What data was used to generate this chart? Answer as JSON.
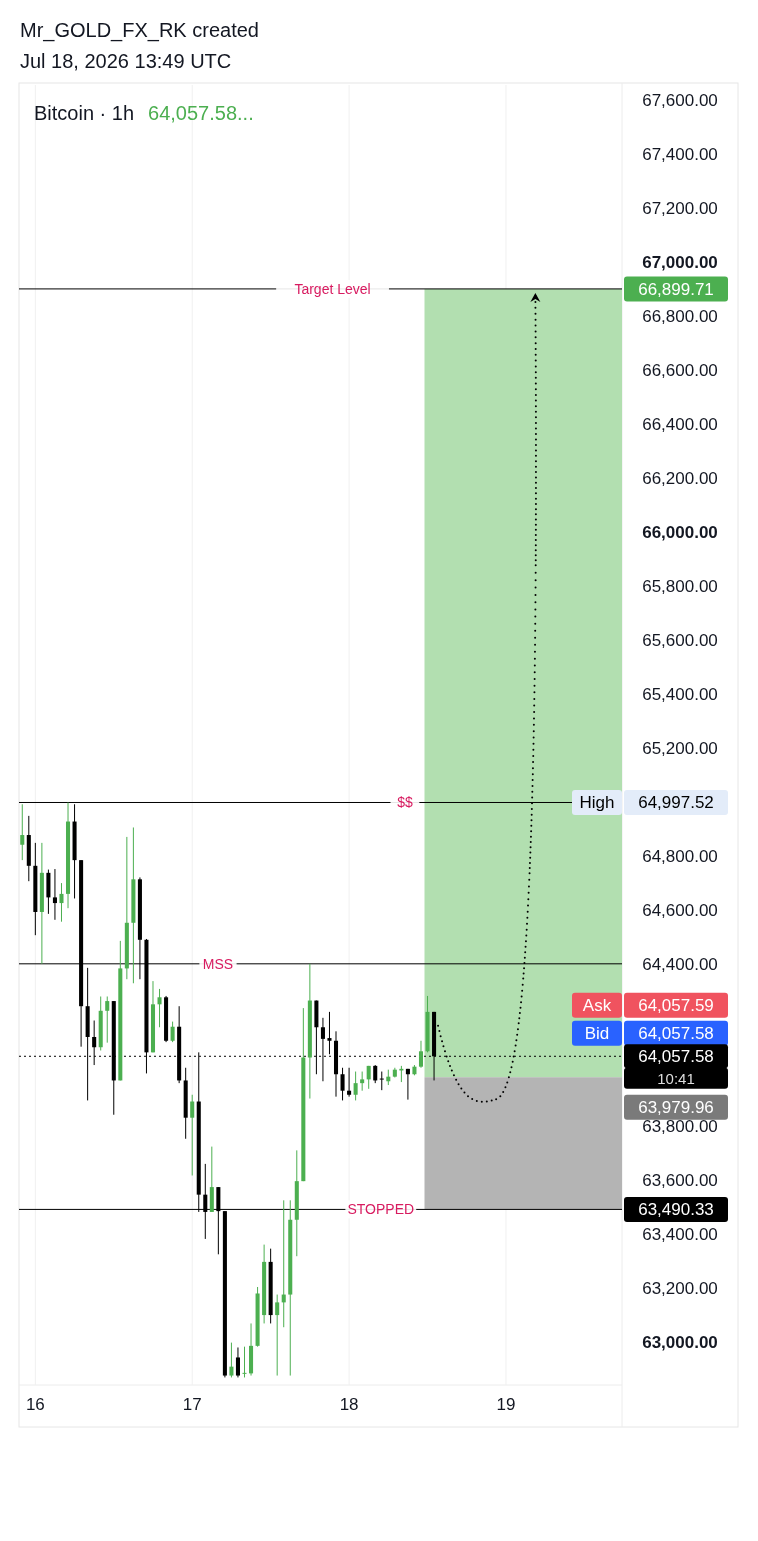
{
  "chart_data": {
    "type": "candlestick",
    "title": "Bitcoin · 1h",
    "x": [
      "2026-07-15T22:00",
      "2026-07-15T23:00",
      "2026-07-16T00:00",
      "2026-07-16T01:00",
      "2026-07-16T02:00",
      "2026-07-16T03:00",
      "2026-07-16T04:00",
      "2026-07-16T05:00",
      "2026-07-16T06:00",
      "2026-07-16T07:00",
      "2026-07-16T08:00",
      "2026-07-16T09:00",
      "2026-07-16T10:00",
      "2026-07-16T11:00",
      "2026-07-16T12:00",
      "2026-07-16T13:00",
      "2026-07-16T14:00",
      "2026-07-16T15:00",
      "2026-07-16T16:00",
      "2026-07-16T17:00",
      "2026-07-16T18:00",
      "2026-07-16T19:00",
      "2026-07-16T20:00",
      "2026-07-16T21:00",
      "2026-07-16T22:00",
      "2026-07-16T23:00",
      "2026-07-17T00:00",
      "2026-07-17T01:00",
      "2026-07-17T02:00",
      "2026-07-17T03:00",
      "2026-07-17T04:00",
      "2026-07-17T05:00",
      "2026-07-17T06:00",
      "2026-07-17T07:00",
      "2026-07-17T08:00",
      "2026-07-17T09:00",
      "2026-07-17T10:00",
      "2026-07-17T11:00",
      "2026-07-17T12:00",
      "2026-07-17T13:00",
      "2026-07-17T14:00",
      "2026-07-17T15:00",
      "2026-07-17T16:00",
      "2026-07-17T17:00",
      "2026-07-17T18:00",
      "2026-07-17T19:00",
      "2026-07-17T20:00",
      "2026-07-17T21:00",
      "2026-07-17T22:00",
      "2026-07-17T23:00",
      "2026-07-18T00:00",
      "2026-07-18T01:00",
      "2026-07-18T02:00",
      "2026-07-18T03:00",
      "2026-07-18T04:00",
      "2026-07-18T05:00",
      "2026-07-18T06:00",
      "2026-07-18T07:00",
      "2026-07-18T08:00",
      "2026-07-18T09:00",
      "2026-07-18T10:00",
      "2026-07-18T11:00",
      "2026-07-18T12:00",
      "2026-07-18T13:00"
    ],
    "ohlc": [
      [
        64841,
        64991,
        64784,
        64877
      ],
      [
        64877,
        64948,
        64706,
        64763
      ],
      [
        64763,
        64848,
        64506,
        64592
      ],
      [
        64592,
        64848,
        64400,
        64737
      ],
      [
        64737,
        64749,
        64585,
        64646
      ],
      [
        64646,
        64751,
        64563,
        64625
      ],
      [
        64625,
        64699,
        64556,
        64659
      ],
      [
        64659,
        64997.52,
        64606,
        64927
      ],
      [
        64927,
        64991,
        64642,
        64784
      ],
      [
        64784,
        64784,
        64093,
        64243
      ],
      [
        64243,
        64385,
        63894,
        64129
      ],
      [
        64129,
        64190,
        64025,
        64091
      ],
      [
        64091,
        64279,
        64079,
        64226
      ],
      [
        64226,
        64279,
        64108,
        64262
      ],
      [
        64262,
        64262,
        63841,
        63968
      ],
      [
        63968,
        64485,
        63968,
        64383
      ],
      [
        64383,
        64870,
        64343,
        64552
      ],
      [
        64552,
        64905,
        64328,
        64713
      ],
      [
        64713,
        64720,
        64343,
        64489
      ],
      [
        64489,
        64492,
        63994,
        64072
      ],
      [
        64072,
        64336,
        64072,
        64250
      ],
      [
        64250,
        64307,
        64165,
        64276
      ],
      [
        64276,
        64281,
        64110,
        64115
      ],
      [
        64115,
        64186,
        64110,
        64167
      ],
      [
        64167,
        64243,
        63958,
        63968
      ],
      [
        63968,
        64015,
        63752,
        63830
      ],
      [
        63830,
        63915,
        63616,
        63890
      ],
      [
        63890,
        64072,
        63481,
        63545
      ],
      [
        63545,
        63659,
        63381,
        63481
      ],
      [
        63481,
        63723,
        63481,
        63573
      ],
      [
        63573,
        63573,
        63324,
        63484
      ],
      [
        63484,
        63484,
        62868,
        62875
      ],
      [
        62875,
        62997,
        62868,
        62908
      ],
      [
        62942,
        62979,
        62868,
        62875
      ],
      [
        62883,
        62982,
        62868,
        62885
      ],
      [
        62883,
        63068,
        62875,
        62985
      ],
      [
        62985,
        63203,
        62982,
        63179
      ],
      [
        63099,
        63360,
        63068,
        63296
      ],
      [
        63296,
        63345,
        63068,
        63099
      ],
      [
        63099,
        63175,
        62875,
        63146
      ],
      [
        63146,
        63524,
        63054,
        63175
      ],
      [
        63175,
        63524,
        62875,
        63452
      ],
      [
        63452,
        63709,
        63317,
        63595
      ],
      [
        63595,
        64236,
        63595,
        64053
      ],
      [
        64053,
        64400,
        63901,
        64264
      ],
      [
        64264,
        64264,
        63991,
        64165
      ],
      [
        64165,
        64200,
        63965,
        64122
      ],
      [
        64125,
        64222,
        64065,
        64115
      ],
      [
        64115,
        64150,
        63908,
        63991
      ],
      [
        63991,
        64015,
        63894,
        63930
      ],
      [
        63930,
        64015,
        63908,
        63915
      ],
      [
        63915,
        64001,
        63894,
        63958
      ],
      [
        63958,
        64001,
        63930,
        63972
      ],
      [
        63972,
        64022,
        63937,
        64022
      ],
      [
        64022,
        64025,
        63958,
        63968
      ],
      [
        63975,
        64001,
        63932,
        63972
      ],
      [
        63965,
        64008,
        63951,
        63982
      ],
      [
        63982,
        64015,
        63979,
        64008
      ],
      [
        64005,
        64022,
        63962,
        64011
      ],
      [
        64011,
        64011,
        63897,
        63991
      ],
      [
        63991,
        64025,
        63987,
        64019
      ],
      [
        64019,
        64115,
        64015,
        64076
      ],
      [
        64076,
        64281,
        64072,
        64222
      ],
      [
        64222,
        64222,
        63968,
        64057.58
      ]
    ],
    "colors": [
      "#4caf50",
      "#000000",
      "#000000",
      "#4caf50",
      "#000000",
      "#000000",
      "#4caf50",
      "#4caf50",
      "#000000",
      "#000000",
      "#000000",
      "#000000",
      "#4caf50",
      "#4caf50",
      "#000000",
      "#4caf50",
      "#4caf50",
      "#4caf50",
      "#000000",
      "#000000",
      "#4caf50",
      "#4caf50",
      "#000000",
      "#4caf50",
      "#000000",
      "#000000",
      "#4caf50",
      "#000000",
      "#000000",
      "#4caf50",
      "#000000",
      "#000000",
      "#4caf50",
      "#000000",
      "#4caf50",
      "#4caf50",
      "#4caf50",
      "#4caf50",
      "#000000",
      "#4caf50",
      "#4caf50",
      "#4caf50",
      "#4caf50",
      "#4caf50",
      "#4caf50",
      "#000000",
      "#000000",
      "#000000",
      "#000000",
      "#000000",
      "#000000",
      "#4caf50",
      "#4caf50",
      "#4caf50",
      "#000000",
      "#000000",
      "#4caf50",
      "#4caf50",
      "#4caf50",
      "#000000",
      "#4caf50",
      "#4caf50",
      "#4caf50",
      "#000000"
    ],
    "xlim": [
      "2026-07-15T21:30",
      "2026-07-20T11:30"
    ],
    "xticks": [
      {
        "value": "2026-07-16",
        "label": "16"
      },
      {
        "value": "2026-07-17",
        "label": "17"
      },
      {
        "value": "2026-07-18",
        "label": "18"
      },
      {
        "value": "2026-07-19",
        "label": "19"
      }
    ],
    "ylim": [
      62840,
      67655
    ],
    "yticks": [
      {
        "value": 63000,
        "label": "63,000.00"
      },
      {
        "value": 63200,
        "label": "63,200.00"
      },
      {
        "value": 63400,
        "label": "63,400.00"
      },
      {
        "value": 63600,
        "label": "63,600.00"
      },
      {
        "value": 63800,
        "label": "63,800.00"
      },
      {
        "value": 64400,
        "label": "64,400.00"
      },
      {
        "value": 64600,
        "label": "64,600.00"
      },
      {
        "value": 64800,
        "label": "64,800.00"
      },
      {
        "value": 65200,
        "label": "65,200.00"
      },
      {
        "value": 65400,
        "label": "65,400.00"
      },
      {
        "value": 65600,
        "label": "65,600.00"
      },
      {
        "value": 65800,
        "label": "65,800.00"
      },
      {
        "value": 66000,
        "label": "66,000.00"
      },
      {
        "value": 66200,
        "label": "66,200.00"
      },
      {
        "value": 66400,
        "label": "66,400.00"
      },
      {
        "value": 66600,
        "label": "66,600.00"
      },
      {
        "value": 66800,
        "label": "66,800.00"
      },
      {
        "value": 67000,
        "label": "67,000.00"
      },
      {
        "value": 67200,
        "label": "67,200.00"
      },
      {
        "value": 67400,
        "label": "67,400.00"
      },
      {
        "value": 67600,
        "label": "67,600.00"
      }
    ],
    "grid": "x",
    "bands": [
      {
        "axis": "y",
        "from": 63979.96,
        "to": 66899.71,
        "color": "#b2dfb0"
      },
      {
        "axis": "y",
        "from": 63490.33,
        "to": 63979.96,
        "color": "#b4b4b4"
      }
    ],
    "ref_lines": [
      {
        "axis": "y",
        "value": 66899.71,
        "label": "Target Level",
        "color": "#000000"
      },
      {
        "axis": "y",
        "value": 64997.52,
        "label": "$$",
        "color": "#000000"
      },
      {
        "axis": "y",
        "value": 64400,
        "label": "MSS",
        "color": "#000000"
      },
      {
        "axis": "y",
        "value": 63490.33,
        "label": "STOPPED",
        "color": "#000000"
      },
      {
        "axis": "y",
        "value": 64057.58,
        "color": "#000000",
        "line_style": "dotted"
      }
    ],
    "annotations": [
      "Mr_GOLD_FX_RK created",
      "Jul 18, 2026 13:49 UTC",
      "64,057.58...",
      "66,899.71",
      "High",
      "64,997.52",
      "Ask",
      "64,057.59",
      "Bid",
      "64,057.58",
      "64,057.58",
      "10:41",
      "63,979.96",
      "63,490.33"
    ]
  }
}
